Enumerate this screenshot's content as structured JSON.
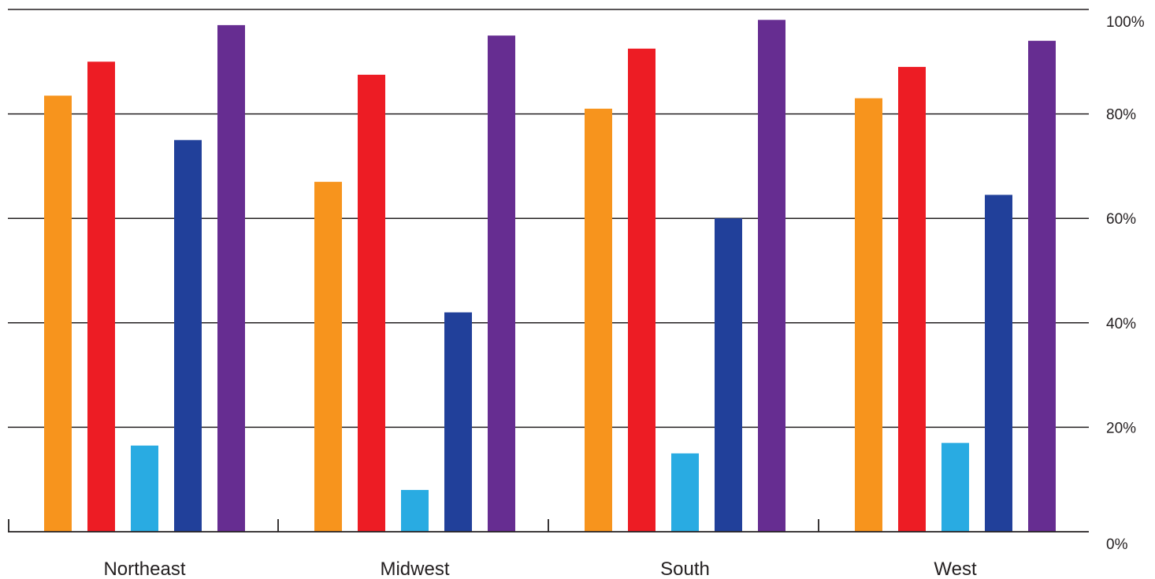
{
  "chart_data": {
    "type": "bar",
    "title": "",
    "xlabel": "",
    "ylabel": "",
    "categories": [
      "Northeast",
      "Midwest",
      "South",
      "West"
    ],
    "ylim": [
      0,
      100
    ],
    "yticks": [
      0,
      20,
      40,
      60,
      80,
      100
    ],
    "ytick_labels": [
      "0%",
      "20%",
      "40%",
      "60%",
      "80%",
      "100%"
    ],
    "y_axis_position": "right",
    "grid": true,
    "legend": "none",
    "series": [
      {
        "color": "#f7941d",
        "values": [
          83.5,
          67,
          81,
          83
        ]
      },
      {
        "color": "#ed1c24",
        "values": [
          90,
          87.5,
          92.5,
          89
        ]
      },
      {
        "color": "#29abe2",
        "values": [
          16.5,
          8,
          15,
          17
        ]
      },
      {
        "color": "#21409a",
        "values": [
          75,
          42,
          60,
          64.5
        ]
      },
      {
        "color": "#662d91",
        "values": [
          97,
          95,
          98,
          94
        ]
      }
    ],
    "colors": {
      "axis": "#231f20",
      "background": "#ffffff"
    }
  }
}
